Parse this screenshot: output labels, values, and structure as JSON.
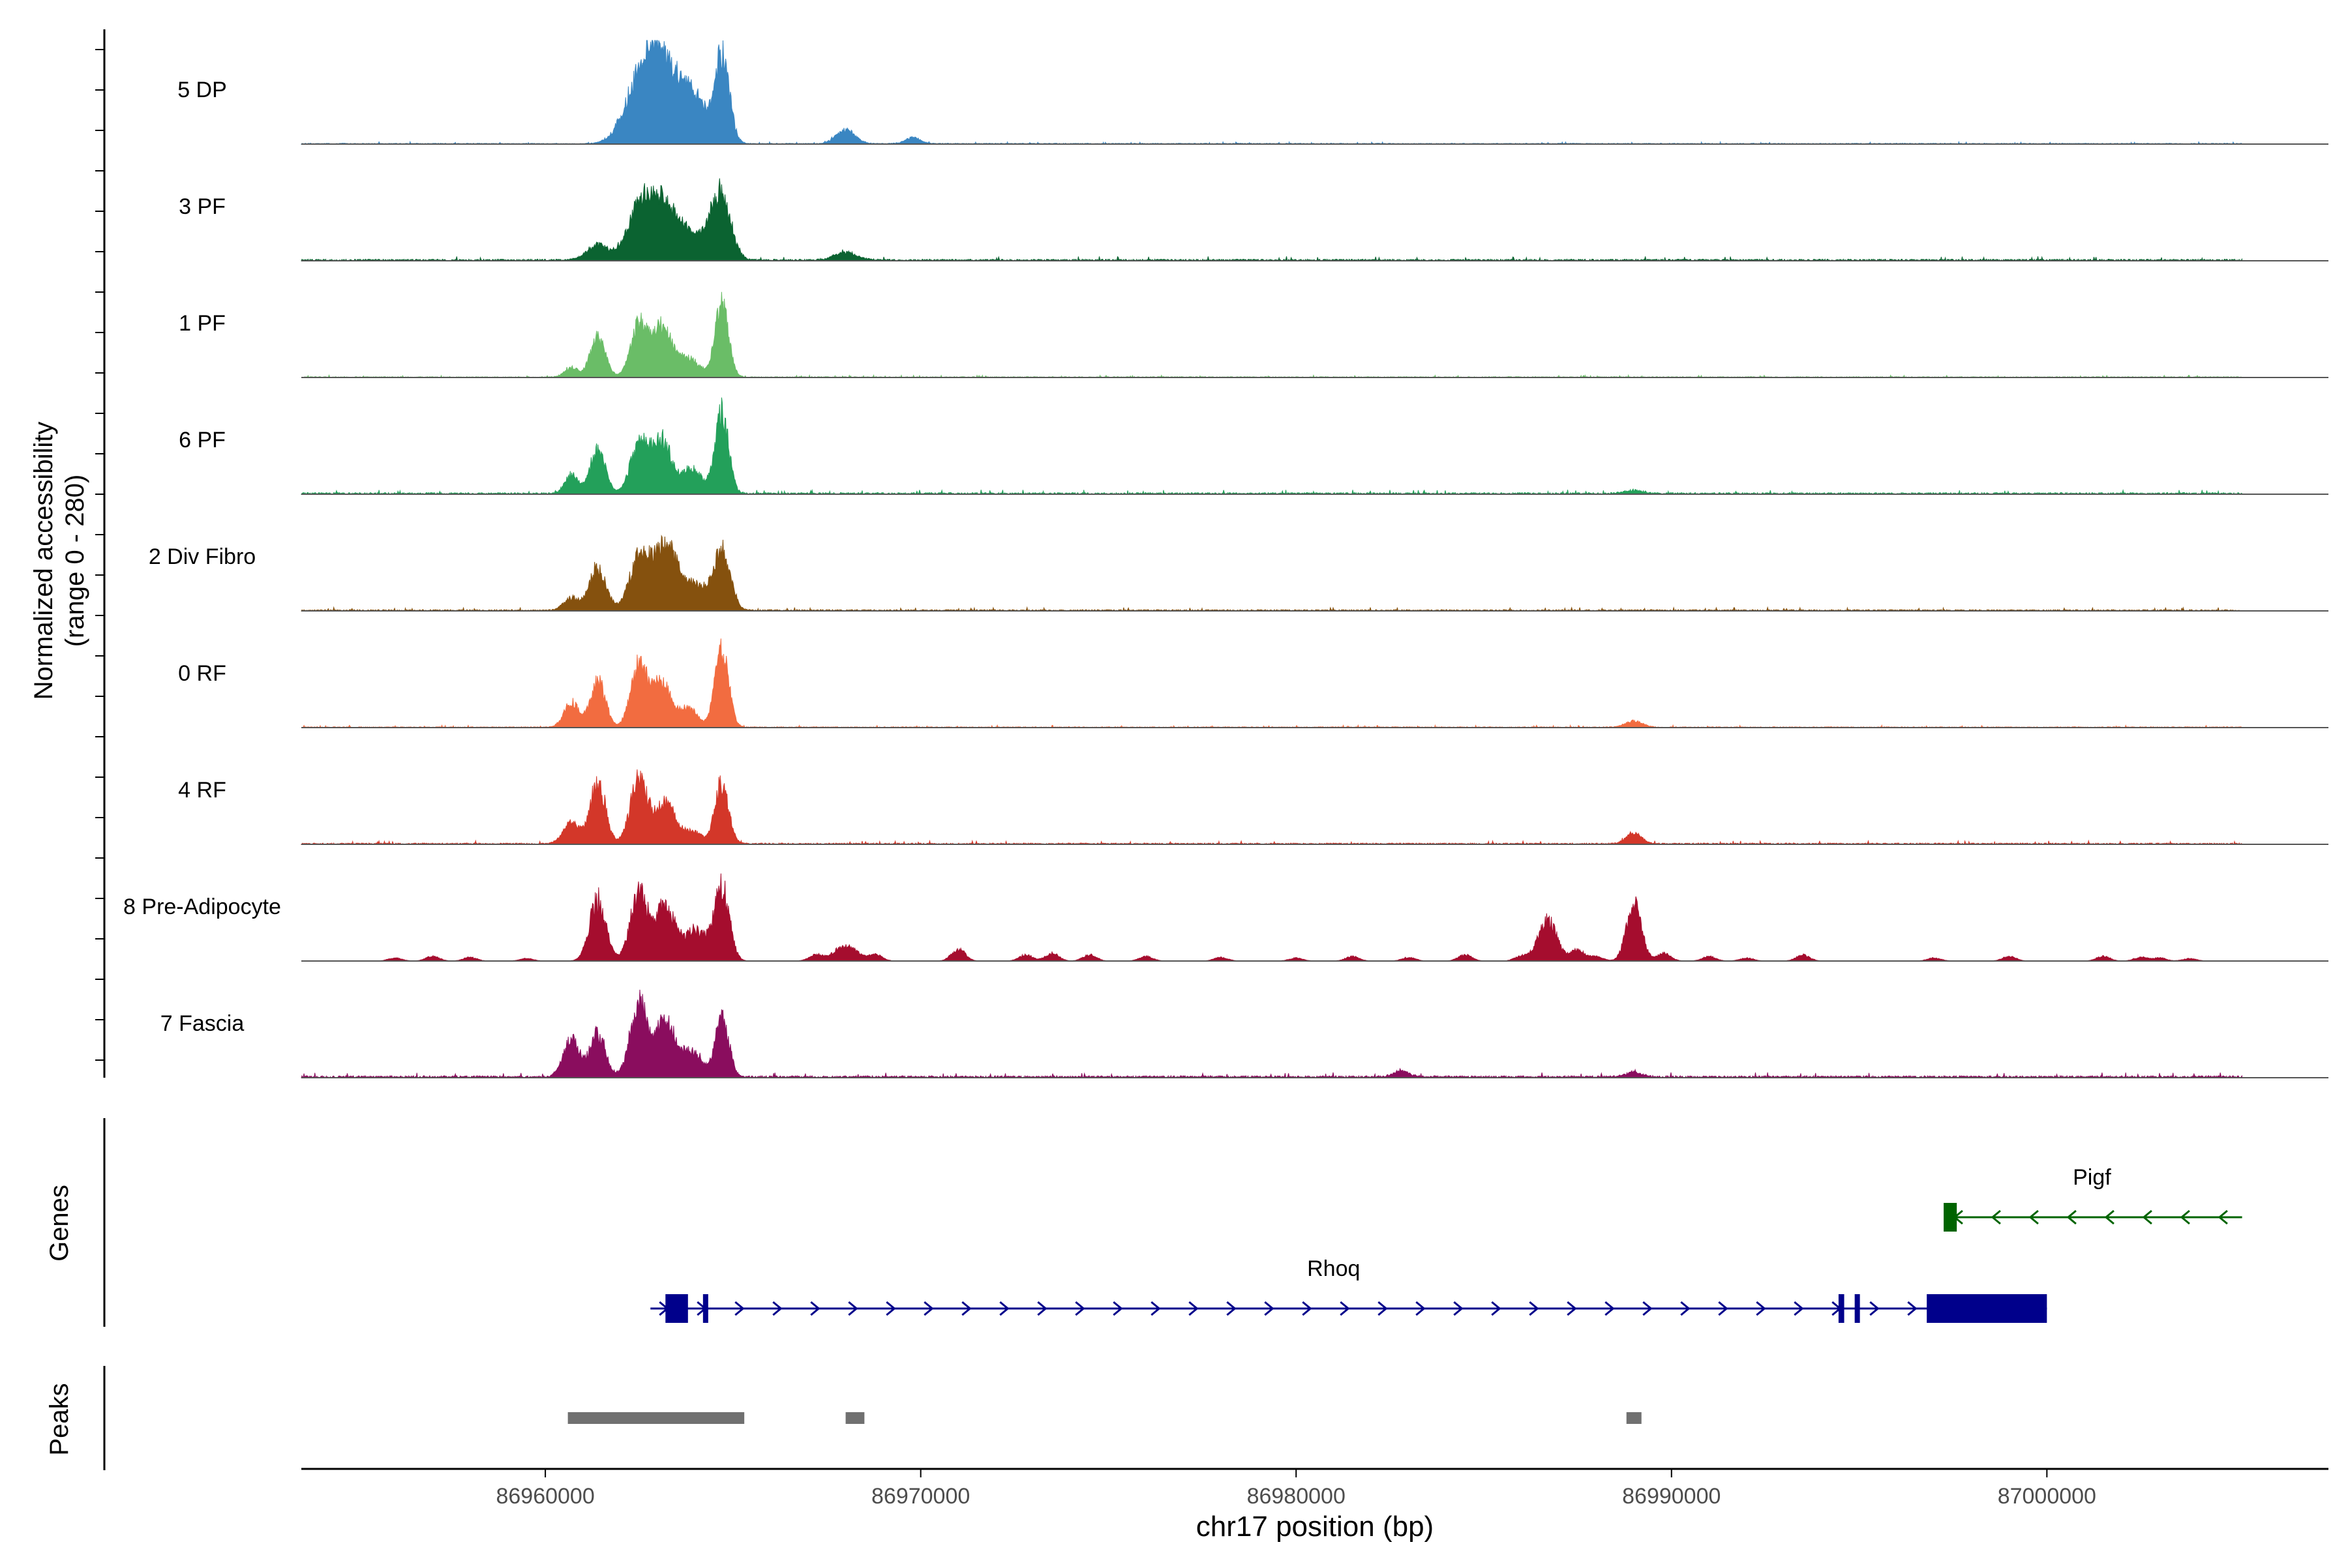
{
  "chart_data": {
    "type": "area",
    "chromosome": "chr17",
    "xlabel": "chr17 position (bp)",
    "ylabel_line1": "Normalized accessibility",
    "ylabel_line2": "(range 0 - 280)",
    "y_range": [
      0,
      280
    ],
    "x_range": [
      86953500,
      87007500
    ],
    "x_ticks": [
      {
        "value": 86960000,
        "label": "86960000"
      },
      {
        "value": 86970000,
        "label": "86970000"
      },
      {
        "value": 86980000,
        "label": "86980000"
      },
      {
        "value": 86990000,
        "label": "86990000"
      },
      {
        "value": 87000000,
        "label": "87000000"
      }
    ],
    "panel_labels": {
      "genes": "Genes",
      "peaks": "Peaks"
    },
    "tracks": [
      {
        "name": "5 DP",
        "color": "#3A86C2",
        "baseline": 0.8,
        "extra": [],
        "peaks": [
          [
            86962500,
            190,
            400
          ],
          [
            86963000,
            180,
            330
          ],
          [
            86963500,
            140,
            380
          ],
          [
            86964000,
            110,
            300
          ],
          [
            86964700,
            280,
            200
          ],
          [
            86968000,
            45,
            250
          ],
          [
            86969800,
            20,
            200
          ]
        ]
      },
      {
        "name": "3 PF",
        "color": "#0B6331",
        "baseline": 1.5,
        "extra": [],
        "peaks": [
          [
            86961400,
            50,
            280
          ],
          [
            86962500,
            160,
            320
          ],
          [
            86963100,
            170,
            330
          ],
          [
            86963700,
            80,
            300
          ],
          [
            86964300,
            60,
            260
          ],
          [
            86964700,
            200,
            250
          ],
          [
            86968000,
            25,
            300
          ]
        ]
      },
      {
        "name": "1 PF",
        "color": "#6ABD67",
        "baseline": 0.8,
        "extra": [],
        "peaks": [
          [
            86960700,
            30,
            180
          ],
          [
            86961400,
            130,
            200
          ],
          [
            86962500,
            170,
            220
          ],
          [
            86963100,
            160,
            260
          ],
          [
            86963800,
            60,
            300
          ],
          [
            86964700,
            230,
            180
          ]
        ]
      },
      {
        "name": "6 PF",
        "color": "#23A05A",
        "baseline": 1.5,
        "extra": [],
        "peaks": [
          [
            86960700,
            60,
            180
          ],
          [
            86961400,
            140,
            200
          ],
          [
            86962500,
            160,
            230
          ],
          [
            86963100,
            170,
            260
          ],
          [
            86963900,
            80,
            260
          ],
          [
            86964700,
            260,
            180
          ],
          [
            86989000,
            10,
            250
          ]
        ]
      },
      {
        "name": "2 Div Fibro",
        "color": "#85510E",
        "baseline": 1.2,
        "extra": [],
        "peaks": [
          [
            86960700,
            40,
            200
          ],
          [
            86961400,
            140,
            220
          ],
          [
            86962500,
            170,
            260
          ],
          [
            86963200,
            210,
            320
          ],
          [
            86964000,
            80,
            300
          ],
          [
            86964700,
            190,
            220
          ]
        ]
      },
      {
        "name": "0 RF",
        "color": "#F26C40",
        "baseline": 0.8,
        "extra": [],
        "peaks": [
          [
            86960700,
            80,
            200
          ],
          [
            86961400,
            150,
            200
          ],
          [
            86962500,
            200,
            220
          ],
          [
            86963100,
            140,
            240
          ],
          [
            86963800,
            60,
            260
          ],
          [
            86964700,
            250,
            180
          ],
          [
            86989000,
            20,
            220
          ]
        ]
      },
      {
        "name": "4 RF",
        "color": "#D33729",
        "baseline": 1.2,
        "extra": [],
        "peaks": [
          [
            86960700,
            70,
            220
          ],
          [
            86961400,
            200,
            200
          ],
          [
            86962500,
            210,
            230
          ],
          [
            86963200,
            130,
            250
          ],
          [
            86963900,
            40,
            260
          ],
          [
            86964700,
            200,
            180
          ],
          [
            86989000,
            35,
            200
          ]
        ]
      },
      {
        "name": "8 Pre-Adipocyte",
        "color": "#A50D2E",
        "baseline": 0,
        "extra": [
          [
            86956000,
            86957000,
            86958000,
            86959500,
            86967200,
            86968800,
            86971000,
            86972800,
            86973500,
            86974500,
            86976000,
            86978000,
            86980000,
            86981500,
            86983000,
            86984500,
            86986000,
            86987500,
            86988000,
            86989800,
            86991000,
            86992000,
            86993500,
            86997000,
            86999000,
            87001500,
            87002500,
            87003000,
            87003800
          ],
          [
            10,
            15,
            12,
            8,
            20,
            20,
            40,
            20,
            25,
            20,
            15,
            12,
            10,
            15,
            12,
            20,
            15,
            35,
            15,
            25,
            15,
            10,
            20,
            10,
            15,
            15,
            12,
            10,
            8
          ]
        ],
        "peaks": [
          [
            86961400,
            200,
            220
          ],
          [
            86962500,
            220,
            230
          ],
          [
            86963200,
            180,
            260
          ],
          [
            86964000,
            100,
            280
          ],
          [
            86964700,
            240,
            200
          ],
          [
            86968000,
            50,
            300
          ],
          [
            86986700,
            130,
            250
          ],
          [
            86989000,
            180,
            200
          ]
        ]
      },
      {
        "name": "7 Fascia",
        "color": "#8A0D5E",
        "baseline": 1.8,
        "extra": [],
        "peaks": [
          [
            86960700,
            120,
            220
          ],
          [
            86961400,
            140,
            200
          ],
          [
            86962500,
            240,
            230
          ],
          [
            86963200,
            180,
            260
          ],
          [
            86963900,
            80,
            260
          ],
          [
            86964700,
            200,
            180
          ],
          [
            86982800,
            20,
            200
          ],
          [
            86989000,
            15,
            200
          ]
        ]
      }
    ],
    "genes": [
      {
        "name": "Pigf",
        "color": "#006400",
        "strand": "-",
        "start": 86997300,
        "end": 87005200,
        "exons": [
          [
            86997250,
            86997600
          ]
        ],
        "label_pos": 87001200
      },
      {
        "name": "Rhoq",
        "color": "#00008B",
        "strand": "+",
        "start": 86962800,
        "end": 87000000,
        "exons": [
          [
            86963200,
            86963800
          ],
          [
            86964200,
            86964260
          ],
          [
            86994450,
            86994600
          ],
          [
            86994880,
            86994940
          ],
          [
            86996800,
            87000000
          ]
        ],
        "label_pos": 86981000
      }
    ],
    "peaks": [
      [
        86960600,
        86965300
      ],
      [
        86968000,
        86968500
      ],
      [
        86988800,
        86989200
      ]
    ]
  }
}
